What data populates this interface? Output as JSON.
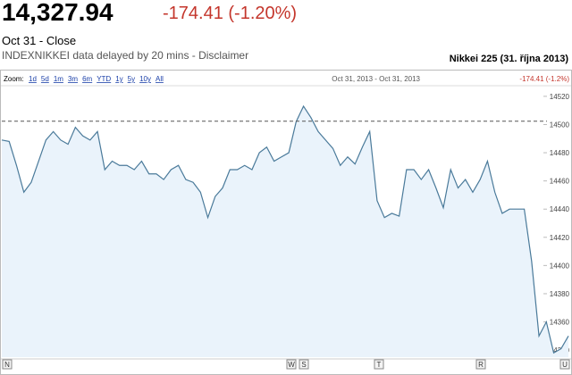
{
  "header": {
    "price": "14,327.94",
    "change": "-174.41 (-1.20%)",
    "date": "Oct 31 - Close",
    "note": "INDEXNIKKEI data delayed by 20 mins - Disclaimer",
    "chart_name": "Nikkei 225 (31. října 2013)"
  },
  "toolbar": {
    "zoom_label": "Zoom:",
    "zoom_options": [
      "1d",
      "5d",
      "1m",
      "3m",
      "6m",
      "YTD",
      "1y",
      "5y",
      "10y",
      "All"
    ],
    "range": "Oct 31, 2013 - Oct 31, 2013",
    "range_change": "-174.41 (-1.2%)"
  },
  "chart_data": {
    "type": "line",
    "color": "#4a7a9a",
    "fill": "#eaf3fb",
    "categories": [
      null,
      null,
      null,
      null,
      null,
      null,
      null,
      null,
      null,
      null,
      null,
      null,
      null,
      null,
      null,
      null,
      null,
      null,
      null,
      null,
      null,
      null,
      null,
      null,
      null,
      null,
      null,
      null,
      null,
      null,
      null,
      null,
      null,
      null,
      null,
      null,
      null,
      null,
      null,
      null,
      null,
      null,
      null,
      null,
      null,
      null,
      null,
      null,
      null,
      null,
      null,
      null,
      null,
      null,
      null,
      null,
      null,
      null,
      null,
      null,
      null,
      null,
      null,
      null,
      null,
      null,
      null,
      null,
      null,
      null,
      null,
      null,
      null,
      null,
      null,
      null,
      null,
      null
    ],
    "values": [
      14489,
      14488,
      14471,
      14452,
      14459,
      14474,
      14489,
      14495,
      14489,
      14486,
      14498,
      14492,
      14489,
      14495,
      14468,
      14474,
      14471,
      14471,
      14468,
      14474,
      14465,
      14465,
      14461,
      14468,
      14471,
      14461,
      14459,
      14452,
      14434,
      14449,
      14455,
      14468,
      14468,
      14471,
      14468,
      14480,
      14484,
      14474,
      14477,
      14480,
      14502,
      14513,
      14505,
      14495,
      14489,
      14483,
      14471,
      14477,
      14472,
      14484,
      14495,
      14446,
      14434,
      14437,
      14435,
      14468,
      14468,
      14461,
      14468,
      14455,
      14441,
      14468,
      14455,
      14461,
      14452,
      14461,
      14474,
      14452,
      14437,
      14440,
      14440,
      14440,
      14403,
      14350,
      14360,
      14338,
      14341,
      14350
    ],
    "previous_close": 14502.35,
    "ylim": [
      14335,
      14525
    ],
    "yticks": [
      14340,
      14360,
      14380,
      14400,
      14420,
      14440,
      14460,
      14480,
      14500,
      14520
    ],
    "news_flags": [
      "N",
      "W",
      "S",
      "T",
      "R",
      "U"
    ]
  }
}
